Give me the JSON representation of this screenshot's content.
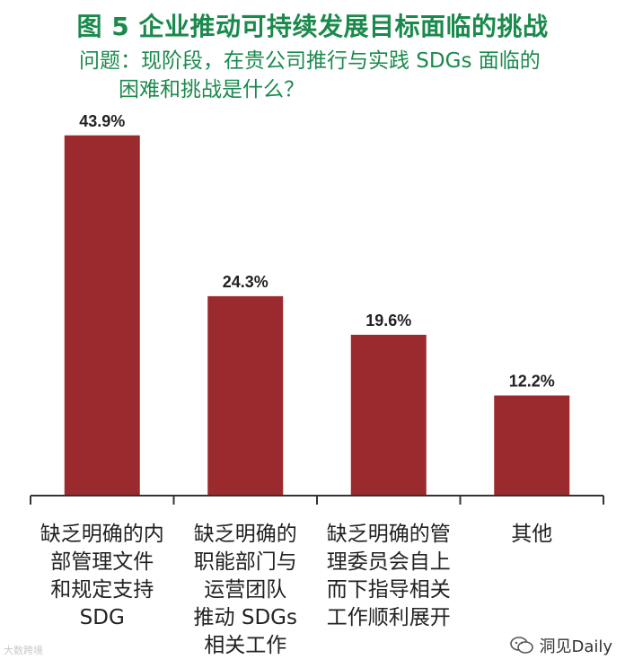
{
  "title": "图 5 企业推动可持续发展目标面临的挑战",
  "subtitle_line1": "问题：现阶段，在贵公司推行与实践 SDGs 面临的",
  "subtitle_line2": "困难和挑战是什么？",
  "colors": {
    "bar": "#9b2a2e",
    "title": "#1a8a4c",
    "axis": "#333333"
  },
  "chart_data": {
    "type": "bar",
    "title": "图 5 企业推动可持续发展目标面临的挑战",
    "categories": [
      "缺乏明确的内部管理文件和规定支持SDG",
      "缺乏明确的职能部门与运营团队推动 SDGs 相关工作",
      "缺乏明确的管理委员会自上而下指导相关工作顺利展开",
      "其他"
    ],
    "category_lines": [
      [
        "缺乏明确的内",
        "部管理文件",
        "和规定支持",
        "SDG"
      ],
      [
        "缺乏明确的",
        "职能部门与",
        "运营团队",
        "推动 SDGs",
        "相关工作"
      ],
      [
        "缺乏明确的管",
        "理委员会自上",
        "而下指导相关",
        "工作顺利展开"
      ],
      [
        "其他"
      ]
    ],
    "values": [
      43.9,
      24.3,
      19.6,
      12.2
    ],
    "value_labels": [
      "43.9%",
      "24.3%",
      "19.6%",
      "12.2%"
    ],
    "unit": "%",
    "ylim": [
      0,
      50
    ],
    "grid": false,
    "legend": "none"
  },
  "watermark_left": "大数跨境",
  "watermark_right": "洞见Daily"
}
